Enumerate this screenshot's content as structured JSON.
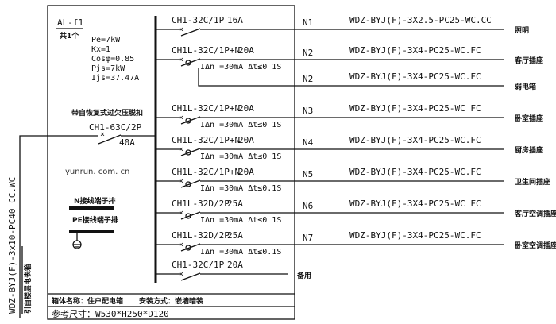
{
  "panel": {
    "name": "AL-f1",
    "quantity": "共1个",
    "params": [
      "Pe=7kW",
      "Kx=1",
      "Cosφ=0.85",
      "Pjs=7kW",
      "Ijs=37.47A"
    ],
    "main_breaker_note": "带自恢复式过欠压脱扣",
    "main_breaker_model": "CH1-63C/2P",
    "main_breaker_rating": "40A",
    "watermark": "yunrun. com. cn",
    "n_terminal": "N接线端子排",
    "pe_terminal": "PE接线端子排",
    "incoming_cable": "WDZ-BYJ(F)-3x10-PC40 CC.WC",
    "incoming_note": "引自楼层电表箱",
    "box_name": "箱体名称：住户配电箱",
    "install_method": "安装方式：嵌墙暗装",
    "size": "参考尺寸：W530*H250*D120"
  },
  "branches": [
    {
      "breaker": "CH1-32C/1P",
      "rating": "16A",
      "rcd": "",
      "circuit": "N1",
      "cable": "WDZ-BYJ(F)-3X2.5-PC25-WC.CC",
      "load": "照明"
    },
    {
      "breaker": "CH1L-32C/1P+N",
      "rating": "20A",
      "rcd": "IΔn =30mA Δt≤0 1S",
      "circuit": "N2",
      "cable": "WDZ-BYJ(F)-3X4-PC25-WC.FC",
      "load": "客厅插座"
    },
    {
      "breaker": "",
      "rating": "",
      "rcd": "",
      "circuit": "N2",
      "cable": "WDZ-BYJ(F)-3X4-PC25-WC.FC",
      "load": "弱电箱"
    },
    {
      "breaker": "CH1L-32C/1P+N",
      "rating": "20A",
      "rcd": "IΔn =30mA Δt≤0 1S",
      "circuit": "N3",
      "cable": "WDZ-BYJ(F)-3X4-PC25-WC FC",
      "load": "卧室插座"
    },
    {
      "breaker": "CH1L-32C/1P+N",
      "rating": "20A",
      "rcd": "IΔn =30mA Δt≤0 1S",
      "circuit": "N4",
      "cable": "WDZ-BYJ(F)-3X4-PC25-WC.FC",
      "load": "厨房插座"
    },
    {
      "breaker": "CH1L-32C/1P+N",
      "rating": "20A",
      "rcd": "IΔn =30mA Δt≤0.1S",
      "circuit": "N5",
      "cable": "WDZ-BYJ(F)-3X4-PC25-WC.FC",
      "load": "卫生间插座"
    },
    {
      "breaker": "CH1L-32D/2P",
      "rating": "25A",
      "rcd": "IΔn =30mA Δt≤0 1S",
      "circuit": "N6",
      "cable": "WDZ-BYJ(F)-3X4-PC25-WC FC",
      "load": "客厅空调插座"
    },
    {
      "breaker": "CH1L-32D/2P",
      "rating": "25A",
      "rcd": "IΔn =30mA Δt≤0.1S",
      "circuit": "N7",
      "cable": "WDZ-BYJ(F)-3X4-PC25-WC.FC",
      "load": "卧室空调插座"
    },
    {
      "breaker": "CH1-32C/1P",
      "rating": "20A",
      "rcd": "",
      "circuit": "",
      "cable": "",
      "load": "备用"
    }
  ]
}
